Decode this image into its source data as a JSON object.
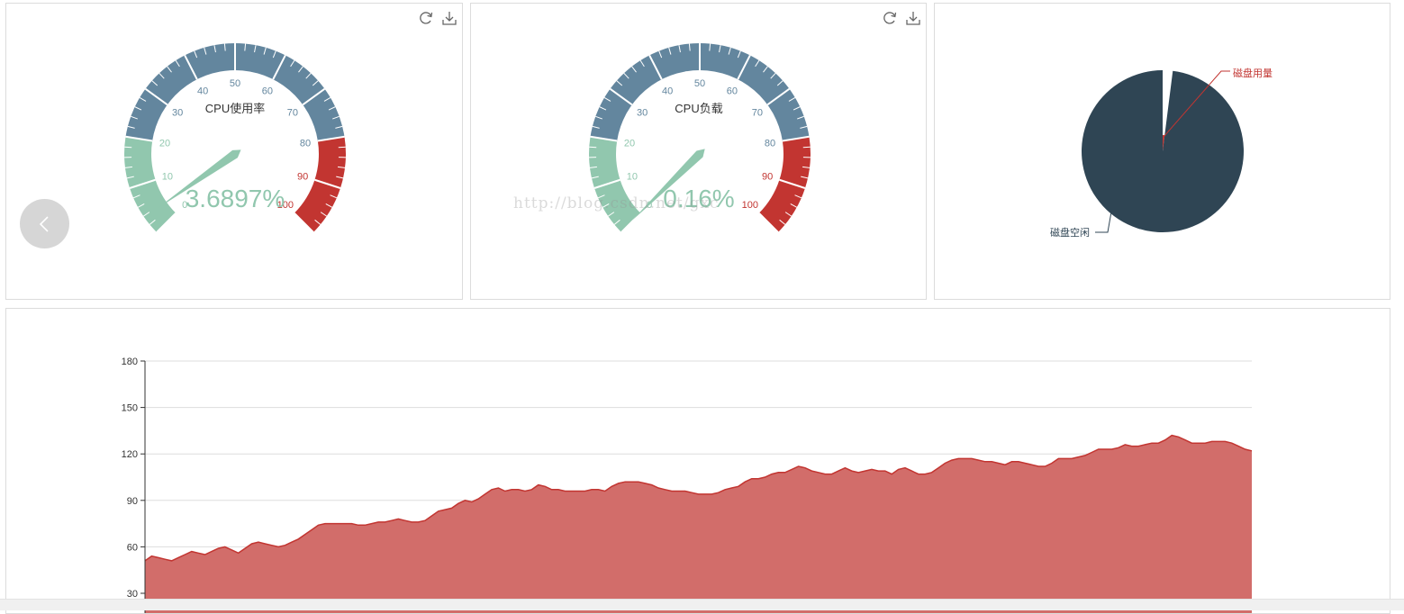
{
  "colors": {
    "green": "#91c7ae",
    "blue": "#63869e",
    "red": "#c23531",
    "dark": "#2f4554",
    "grid": "#dddddd",
    "area": "#d26d6a"
  },
  "toolbox": {
    "icons": [
      "refresh-icon",
      "download-icon"
    ]
  },
  "gauges": [
    {
      "id": "cpu-usage",
      "title": "CPU使用率",
      "detail": "3.6897%",
      "value": 3.6897,
      "min": 0,
      "max": 100,
      "ticks": [
        "0",
        "10",
        "20",
        "30",
        "40",
        "50",
        "60",
        "70",
        "80",
        "90",
        "100"
      ],
      "bands": [
        [
          0.2,
          "#91c7ae"
        ],
        [
          0.8,
          "#63869e"
        ],
        [
          1,
          "#c23531"
        ]
      ]
    },
    {
      "id": "cpu-load",
      "title": "CPU负载",
      "detail": "0.16%",
      "value": 0.16,
      "min": 0,
      "max": 100,
      "ticks": [
        "0",
        "10",
        "20",
        "30",
        "40",
        "50",
        "60",
        "70",
        "80",
        "90",
        "100"
      ],
      "bands": [
        [
          0.2,
          "#91c7ae"
        ],
        [
          0.8,
          "#63869e"
        ],
        [
          1,
          "#c23531"
        ]
      ]
    }
  ],
  "pie": {
    "type": "pie",
    "slices": [
      {
        "name": "磁盘用量",
        "value": 2,
        "color": "#c23531"
      },
      {
        "name": "磁盘空闲",
        "value": 98,
        "color": "#2f4554"
      }
    ]
  },
  "chart_data": {
    "type": "area",
    "ylim": [
      30,
      180
    ],
    "yticks": [
      30,
      60,
      90,
      120,
      150,
      180
    ],
    "grid": true,
    "series": [
      {
        "values": [
          51,
          54,
          53,
          52,
          51,
          53,
          55,
          57,
          56,
          55,
          57,
          59,
          60,
          58,
          56,
          59,
          62,
          63,
          62,
          61,
          60,
          61,
          63,
          65,
          68,
          71,
          74,
          75,
          75,
          75,
          75,
          75,
          74,
          74,
          75,
          76,
          76,
          77,
          78,
          77,
          76,
          76,
          77,
          80,
          83,
          84,
          85,
          88,
          90,
          89,
          91,
          94,
          97,
          98,
          96,
          97,
          97,
          96,
          97,
          100,
          99,
          97,
          97,
          96,
          96,
          96,
          96,
          97,
          97,
          96,
          99,
          101,
          102,
          102,
          102,
          101,
          100,
          98,
          97,
          96,
          96,
          96,
          95,
          94,
          94,
          94,
          95,
          97,
          98,
          99,
          102,
          104,
          104,
          105,
          107,
          108,
          108,
          110,
          112,
          111,
          109,
          108,
          107,
          107,
          109,
          111,
          109,
          108,
          109,
          110,
          109,
          109,
          107,
          110,
          111,
          109,
          107,
          107,
          108,
          111,
          114,
          116,
          117,
          117,
          117,
          116,
          115,
          115,
          114,
          113,
          115,
          115,
          114,
          113,
          112,
          112,
          114,
          117,
          117,
          117,
          118,
          119,
          121,
          123,
          123,
          123,
          124,
          126,
          125,
          125,
          126,
          127,
          127,
          129,
          132,
          131,
          129,
          127,
          127,
          127,
          128,
          128,
          128,
          127,
          125,
          123,
          122
        ]
      }
    ]
  }
}
